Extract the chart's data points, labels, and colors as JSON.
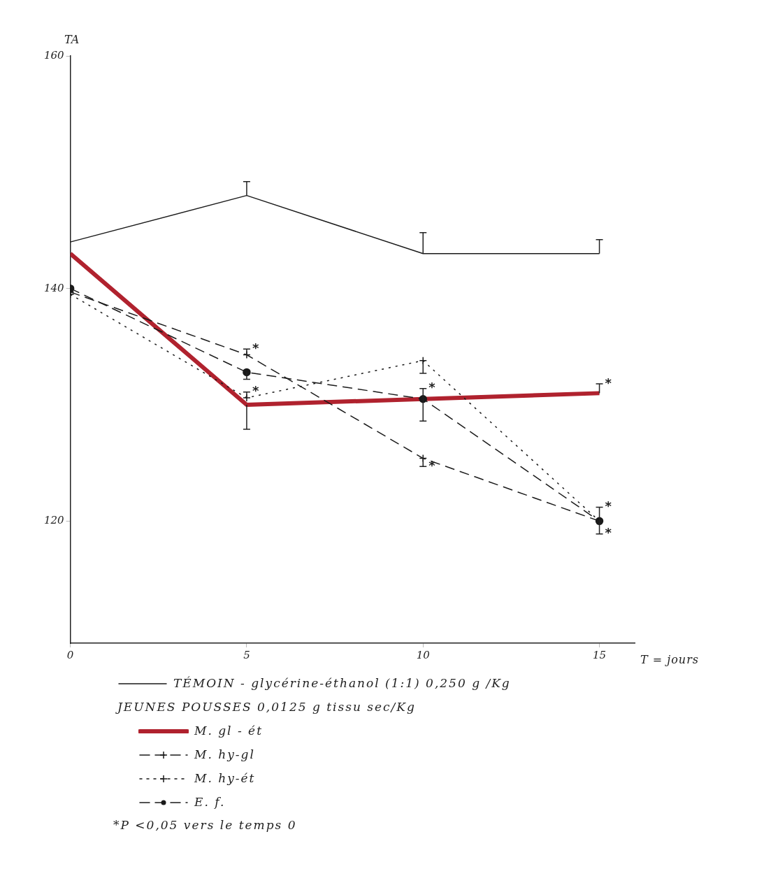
{
  "chart_data": {
    "type": "line",
    "xlabel": "T = jours",
    "ylabel": "TA",
    "legend_title": "JEUNES POUSSES 0,0125 g tissu sec/Kg",
    "legend": "bottom",
    "grid": false,
    "x": [
      0,
      5,
      10,
      15
    ],
    "xlim": [
      0,
      16
    ],
    "xticks": [
      0,
      5,
      10,
      15
    ],
    "ylim": [
      109.5,
      160
    ],
    "yticks": [
      120,
      140,
      160
    ],
    "series": [
      {
        "name": "TÉMOIN - glycérine-éthanol (1:1) 0,250 g /Kg",
        "color": "#1a1a1a",
        "values": [
          144,
          148,
          143,
          143
        ],
        "errors": [
          null,
          [
            148,
            149.2
          ],
          [
            143,
            144.8
          ],
          [
            143,
            144.2
          ]
        ],
        "line_style": "solid",
        "marker": "none"
      },
      {
        "name": "M. gl - ét",
        "color": "#b0222e",
        "values": [
          143,
          130,
          130.5,
          131
        ],
        "errors": [
          null,
          [
            127.9,
            130
          ],
          [
            130.5,
            131.4
          ],
          [
            131,
            131.8
          ]
        ],
        "line_style": "solid",
        "marker": "none"
      },
      {
        "name": "M. hy-gl",
        "color": "#1a1a1a",
        "values": [
          139.7,
          134.3,
          125.4,
          120
        ],
        "errors": [
          null,
          [
            134.3,
            134.8
          ],
          [
            124.7,
            125.4
          ],
          [
            120,
            121.2
          ]
        ],
        "line_style": "dashed",
        "marker": "cross"
      },
      {
        "name": "M. hy-ét",
        "color": "#1a1a1a",
        "values": [
          139.5,
          130.6,
          133.8,
          120
        ],
        "errors": [
          null,
          [
            130.6,
            131.1
          ],
          [
            132.7,
            133.8
          ],
          null
        ],
        "line_style": "dotted",
        "marker": "cross"
      },
      {
        "name": "E. f.",
        "color": "#1a1a1a",
        "values": [
          140,
          132.8,
          130.5,
          120
        ],
        "errors": [
          null,
          [
            132.2,
            132.8
          ],
          [
            128.6,
            130.5
          ],
          [
            118.9,
            120
          ]
        ],
        "line_style": "dashed",
        "marker": "circle"
      }
    ],
    "annotations": [
      {
        "text": "*",
        "x": 5,
        "y": 134.8
      },
      {
        "text": "*",
        "x": 5,
        "y": 131.1
      },
      {
        "text": "*",
        "x": 10,
        "y": 131.4
      },
      {
        "text": "*",
        "x": 10,
        "y": 124.7
      },
      {
        "text": "*",
        "x": 15,
        "y": 131.8
      },
      {
        "text": "*",
        "x": 15,
        "y": 121.2
      },
      {
        "text": "*",
        "x": 15,
        "y": 118.9
      },
      "*P <0,05 vers le temps 0"
    ]
  }
}
